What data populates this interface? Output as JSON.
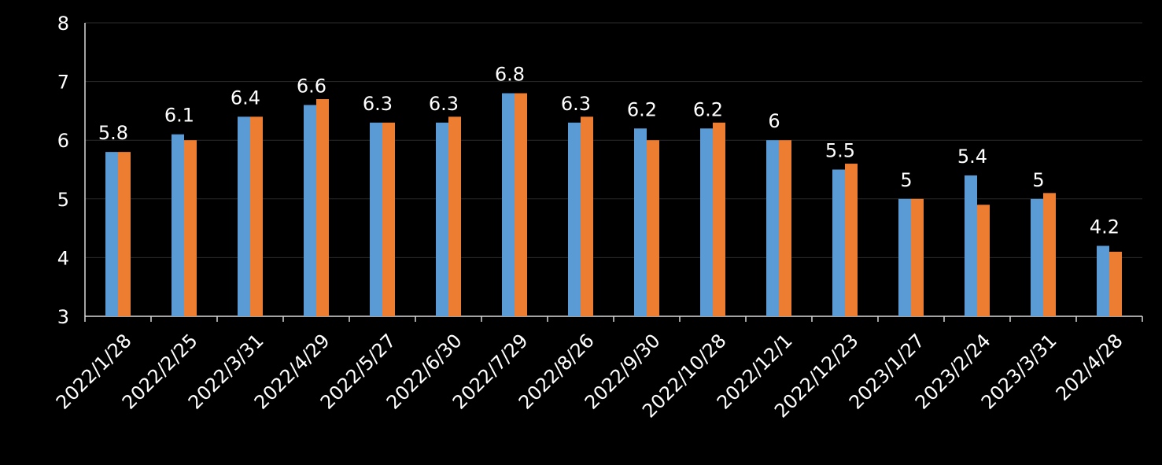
{
  "chart_data": {
    "type": "bar",
    "categories": [
      "2022/1/28",
      "2022/2/25",
      "2022/3/31",
      "2022/4/29",
      "2022/5/27",
      "2022/6/30",
      "2022/7/29",
      "2022/8/26",
      "2022/9/30",
      "2022/10/28",
      "2022/12/1",
      "2022/12/23",
      "2023/1/27",
      "2023/2/24",
      "2023/3/31",
      "202/4/28"
    ],
    "series": [
      {
        "values": [
          5.8,
          6.1,
          6.4,
          6.6,
          6.3,
          6.3,
          6.8,
          6.3,
          6.2,
          6.2,
          6.0,
          5.5,
          5.0,
          5.4,
          5.0,
          4.2
        ],
        "color": "#5B9BD5"
      },
      {
        "values": [
          5.8,
          6.0,
          6.4,
          6.7,
          6.3,
          6.4,
          6.8,
          6.4,
          6.0,
          6.3,
          6.0,
          5.6,
          5.0,
          4.9,
          5.1,
          4.1
        ],
        "color": "#ED7D31"
      }
    ],
    "data_labels": [
      "5.8",
      "6.1",
      "6.4",
      "6.6",
      "6.3",
      "6.3",
      "6.8",
      "6.3",
      "6.2",
      "6.2",
      "6",
      "5.5",
      "5",
      "5.4",
      "5",
      "4.2"
    ],
    "yticks": [
      "3",
      "4",
      "5",
      "6",
      "7",
      "8"
    ],
    "ylim": [
      3,
      8
    ],
    "grid": true,
    "gridline_color": "#2b2b2b",
    "background": "#000000",
    "text_color": "#ffffff",
    "title": "",
    "xlabel": "",
    "ylabel": ""
  }
}
